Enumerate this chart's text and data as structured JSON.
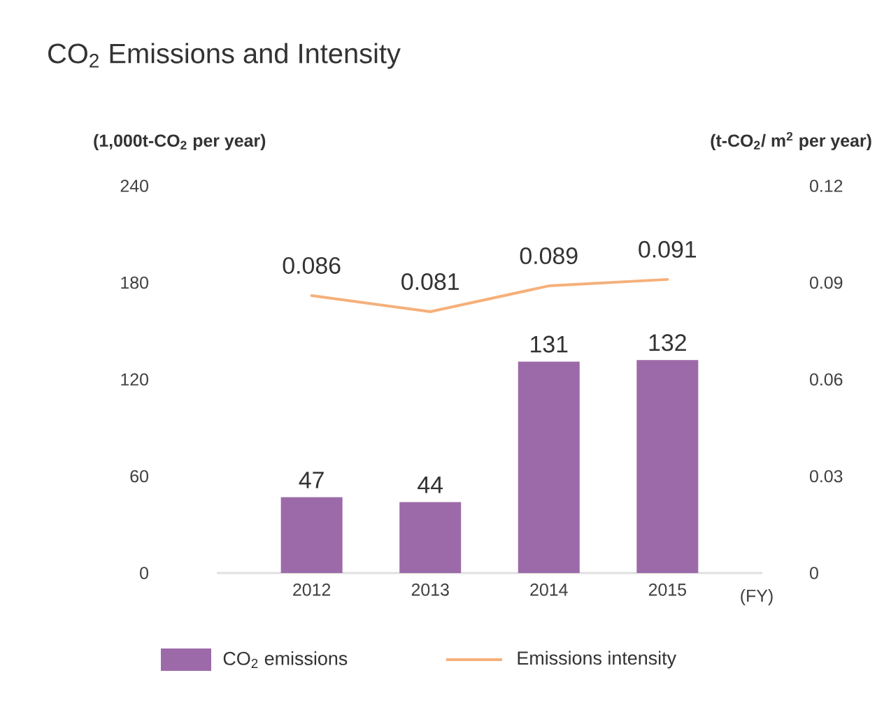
{
  "chart_data": {
    "type": "bar",
    "title": "CO$_{2}$ Emissions and Intensity",
    "ylabel": "(1,000t-CO$_{2}$ per year)",
    "y2label": "(t-CO$_{2}$/ m$^{2}$ per year)",
    "xlabel": "(FY)",
    "categories": [
      "2012",
      "2013",
      "2014",
      "2015"
    ],
    "series": [
      {
        "name": "CO$_{2}$ emissions",
        "color": "#9c6aa9",
        "values": [
          47,
          44,
          131,
          132
        ]
      },
      {
        "name": "Emissions intensity",
        "type": "line",
        "axis": "y2",
        "color": "#f5b07a",
        "values": [
          0.086,
          0.081,
          0.089,
          0.091
        ]
      }
    ],
    "ylim": [
      0,
      240
    ],
    "yticks": [
      0,
      60,
      120,
      180,
      240
    ],
    "y2lim": [
      0,
      0.12
    ],
    "y2ticks": [
      0,
      0.03,
      0.06,
      0.09,
      0.12
    ],
    "data_labels": true,
    "legend": "bottom"
  }
}
